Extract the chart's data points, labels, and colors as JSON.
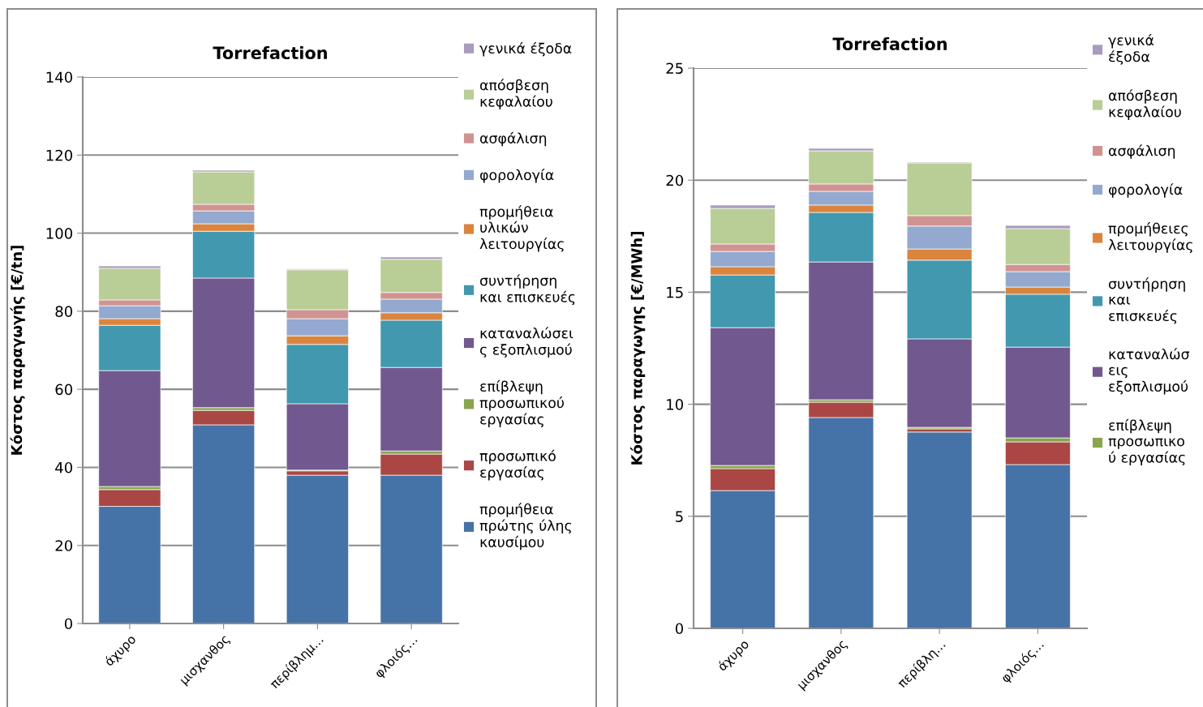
{
  "chart_data": [
    {
      "type": "bar",
      "stacked": true,
      "title": "Torrefaction",
      "ylabel": "Κόστος παραγωγής [€/tn]",
      "categories": [
        "άχυρο",
        "μισχανθος",
        "περίβλημ…",
        "φλοιός…"
      ],
      "ylim": [
        0,
        140
      ],
      "yticks": [
        0,
        20,
        40,
        60,
        80,
        100,
        120,
        140
      ],
      "grid": "y",
      "legend": "right",
      "series": [
        {
          "name": "προμήθεια\nπρώτης ύλης\nκαυσίμου",
          "color": "#4572a7",
          "values": [
            30.0,
            50.9,
            38.0,
            38.0
          ]
        },
        {
          "name": "προσωπικό\nεργασίας",
          "color": "#aa4643",
          "values": [
            4.3,
            3.7,
            1.1,
            5.4
          ]
        },
        {
          "name": "επίβλεψη\nπροσωπικού\nεργασίας",
          "color": "#89a54e",
          "values": [
            0.8,
            0.7,
            0.2,
            0.8
          ]
        },
        {
          "name": "καταναλώσει\nς εξοπλισμού",
          "color": "#71588f",
          "values": [
            29.7,
            33.2,
            17.0,
            21.4
          ]
        },
        {
          "name": "συντήρηση\nκαι επισκευές",
          "color": "#4198af",
          "values": [
            11.6,
            12.0,
            15.2,
            12.1
          ]
        },
        {
          "name": "προμήθεια\nυλικών\nλειτουργίας",
          "color": "#db843d",
          "values": [
            1.7,
            1.9,
            2.2,
            1.9
          ]
        },
        {
          "name": "φορολογία",
          "color": "#93a9cf",
          "values": [
            3.3,
            3.3,
            4.4,
            3.5
          ]
        },
        {
          "name": "ασφάλιση",
          "color": "#d19392",
          "values": [
            1.5,
            1.7,
            2.3,
            1.7
          ]
        },
        {
          "name": "απόσβεση\nκεφαλαίου",
          "color": "#b9cd96",
          "values": [
            8.1,
            8.3,
            10.2,
            8.5
          ]
        },
        {
          "name": "γενικά έξοδα",
          "color": "#a99bbd",
          "values": [
            0.6,
            0.4,
            0.2,
            0.6
          ]
        }
      ]
    },
    {
      "type": "bar",
      "stacked": true,
      "title": "Torrefaction",
      "ylabel": "Κόστος παραγωγης [€/MWh]",
      "categories": [
        "άχυρο",
        "μισχανθος",
        "περίβλη…",
        "φλοιός…"
      ],
      "ylim": [
        0,
        25
      ],
      "yticks": [
        0,
        5,
        10,
        15,
        20,
        25
      ],
      "grid": "y",
      "legend": "right",
      "series": [
        {
          "color": "#4572a7",
          "values": [
            6.15,
            9.41,
            8.76,
            7.31
          ]
        },
        {
          "color": "#aa4643",
          "values": [
            0.98,
            0.68,
            0.14,
            1.01
          ]
        },
        {
          "name": "επίβλεψη\nπροσωπικο\nύ εργασίας",
          "color": "#89a54e",
          "values": [
            0.14,
            0.11,
            0.07,
            0.18
          ]
        },
        {
          "name": "καταναλώσ\nεις\nεξοπλισμού",
          "color": "#71588f",
          "values": [
            6.15,
            6.15,
            3.95,
            4.05
          ]
        },
        {
          "name": "συντήρηση\nκαι\nεπισκευές",
          "color": "#4198af",
          "values": [
            2.35,
            2.21,
            3.51,
            2.36
          ]
        },
        {
          "name": "προμήθειες\nλειτουργίας",
          "color": "#db843d",
          "values": [
            0.37,
            0.33,
            0.5,
            0.32
          ]
        },
        {
          "name": "φορολογία",
          "color": "#93a9cf",
          "values": [
            0.68,
            0.61,
            1.02,
            0.69
          ]
        },
        {
          "name": "ασφάλιση",
          "color": "#d19392",
          "values": [
            0.33,
            0.33,
            0.47,
            0.32
          ]
        },
        {
          "name": "απόσβεση\nκεφαλαίου",
          "color": "#b9cd96",
          "values": [
            1.59,
            1.48,
            2.35,
            1.6
          ]
        },
        {
          "name": "γενικά\nέξοδα",
          "color": "#a99bbd",
          "values": [
            0.15,
            0.11,
            0.03,
            0.14
          ]
        }
      ]
    }
  ]
}
